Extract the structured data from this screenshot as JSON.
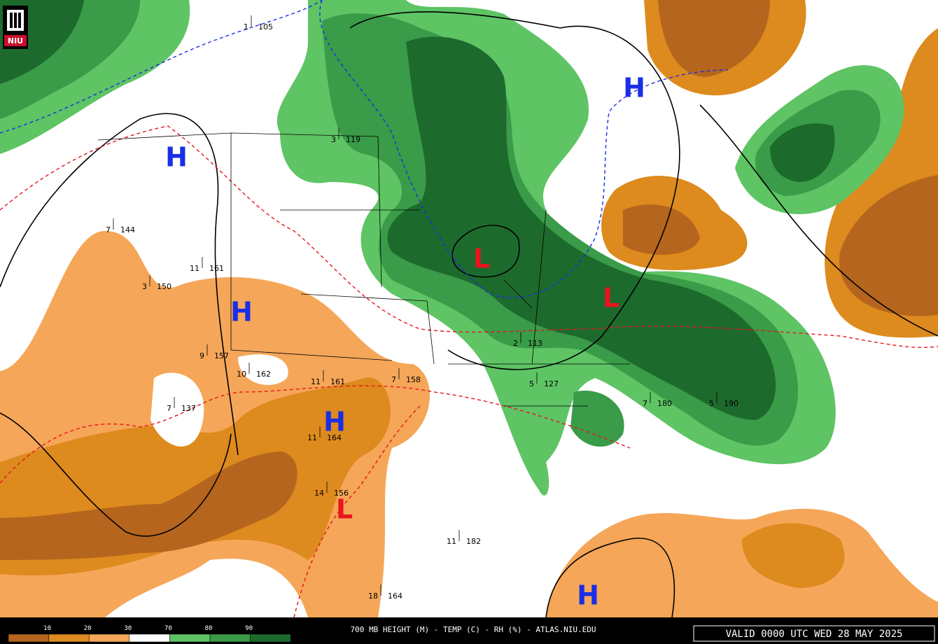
{
  "header": {
    "logo": "NIU"
  },
  "footer": {
    "title": "700 MB HEIGHT (M) - TEMP (C) - RH (%) - ATLAS.NIU.EDU",
    "valid": "VALID 0000 UTC WED 28 MAY 2025"
  },
  "legend": {
    "labels": [
      "10",
      "20",
      "30",
      "70",
      "80",
      "90"
    ],
    "colors": [
      "#b5651d",
      "#dd8a1e",
      "#f5a658",
      "#ffffff",
      "#5ec464",
      "#3a9b48",
      "#1d6a2d"
    ]
  },
  "centers": [
    {
      "label": "H",
      "color": "#1a2ee6"
    },
    {
      "label": "H",
      "color": "#1a2ee6"
    },
    {
      "label": "H",
      "color": "#1a2ee6"
    },
    {
      "label": "H",
      "color": "#1a2ee6"
    },
    {
      "label": "H",
      "color": "#1a2ee6"
    },
    {
      "label": "L",
      "color": "#e8141e"
    },
    {
      "label": "L",
      "color": "#e8141e"
    },
    {
      "label": "L",
      "color": "#e8141e"
    }
  ],
  "stations": [
    {
      "temp": "1",
      "height": "105"
    },
    {
      "temp": "7",
      "height": "144"
    },
    {
      "temp": "11",
      "height": "161"
    },
    {
      "temp": "3",
      "height": "150"
    },
    {
      "temp": "9",
      "height": "157"
    },
    {
      "temp": "10",
      "height": "162"
    },
    {
      "temp": "11",
      "height": "161"
    },
    {
      "temp": "7",
      "height": "137"
    },
    {
      "temp": "11",
      "height": "164"
    },
    {
      "temp": "14",
      "height": "156"
    },
    {
      "temp": "7",
      "height": "158"
    },
    {
      "temp": "2",
      "height": "113"
    },
    {
      "temp": "5",
      "height": "127"
    },
    {
      "temp": "7",
      "height": "180"
    },
    {
      "temp": "5",
      "height": "190"
    },
    {
      "temp": "11",
      "height": "182"
    },
    {
      "temp": "18",
      "height": "164"
    },
    {
      "temp": "3",
      "height": "119"
    }
  ]
}
